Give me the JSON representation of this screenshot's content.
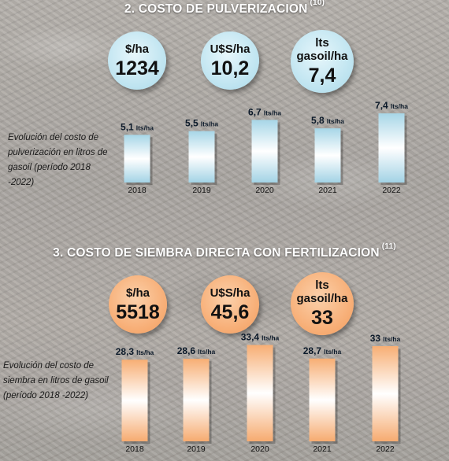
{
  "sections": [
    {
      "title": "2. COSTO DE PULVERIZACION",
      "note": "(10)",
      "circles": [
        {
          "unit": "$/ha",
          "value": "1234"
        },
        {
          "unit": "U$S/ha",
          "value": "10,2"
        },
        {
          "unit": "lts gasoil/ha",
          "value": "7,4"
        }
      ],
      "side_text": "Evolución del costo de pulverización en litros de gasoil (período 2018 -2022)"
    },
    {
      "title": "3. COSTO DE SIEMBRA DIRECTA CON FERTILIZACION",
      "note": "(11)",
      "circles": [
        {
          "unit": "$/ha",
          "value": "5518"
        },
        {
          "unit": "U$S/ha",
          "value": "45,6"
        },
        {
          "unit": "lts gasoil/ha",
          "value": "33"
        }
      ],
      "side_text": "Evolución del costo de siembra en litros de gasoil (período 2018 -2022)"
    }
  ],
  "colors": {
    "blue_fill": "#a9d8e8",
    "orange_fill": "#f7b07a",
    "title_text": "#ffffff"
  },
  "chart_data": [
    {
      "type": "bar",
      "categories": [
        "2018",
        "2019",
        "2020",
        "2021",
        "2022"
      ],
      "values": [
        5.1,
        5.5,
        6.7,
        5.8,
        7.4
      ],
      "data_labels": [
        "5,1",
        "5,5",
        "6,7",
        "5,8",
        "7,4"
      ],
      "data_label_unit": "lts/ha",
      "title": "",
      "xlabel": "",
      "ylabel": "",
      "ylim": [
        0,
        8
      ],
      "grid": false,
      "color": "#a9d8e8"
    },
    {
      "type": "bar",
      "categories": [
        "2018",
        "2019",
        "2020",
        "2021",
        "2022"
      ],
      "values": [
        28.3,
        28.6,
        33.4,
        28.7,
        33
      ],
      "data_labels": [
        "28,3",
        "28,6",
        "33,4",
        "28,7",
        "33"
      ],
      "data_label_unit": "lts/ha",
      "title": "",
      "xlabel": "",
      "ylabel": "",
      "ylim": [
        0,
        36
      ],
      "grid": false,
      "color": "#f7b07a"
    }
  ]
}
